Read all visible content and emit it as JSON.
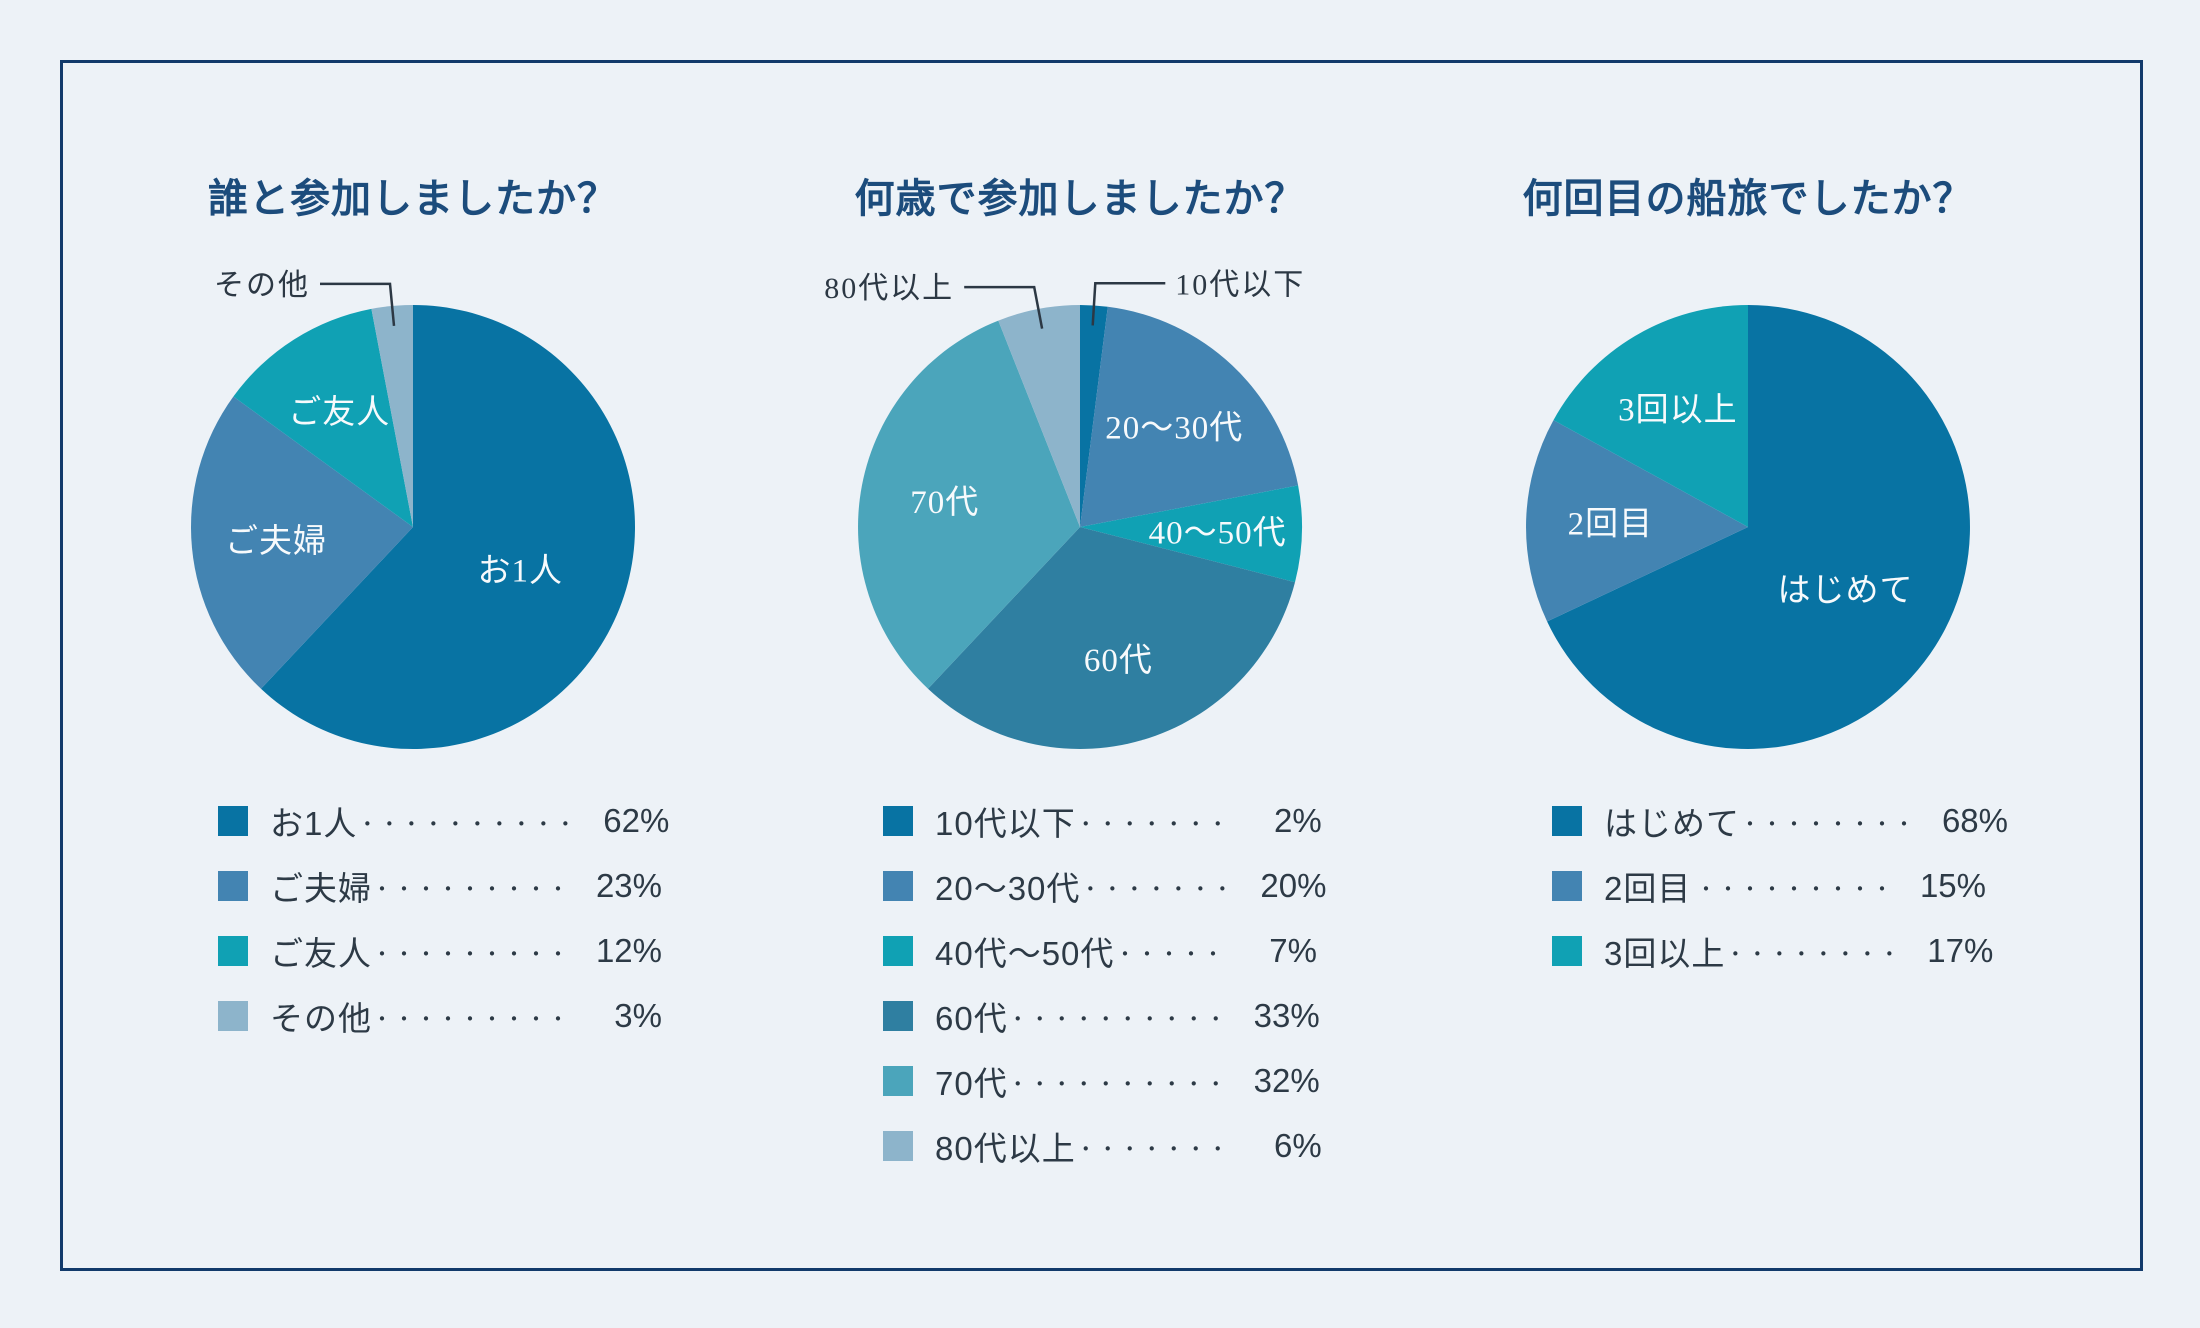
{
  "frame": {
    "background": "#edf2f7",
    "border_color": "#123a6b",
    "title_color": "#1c4c7c",
    "text_color": "#2d3a46"
  },
  "chart_data": [
    {
      "type": "pie",
      "title": "誰と参加しましたか？",
      "legend_position": "bottom",
      "slices": [
        {
          "label": "お1人",
          "value": 62,
          "color": "#0873a3",
          "pie_label": "お1人",
          "label_placement": "inside"
        },
        {
          "label": "ご夫婦",
          "value": 23,
          "color": "#4384b2",
          "pie_label": "ご夫婦",
          "label_placement": "inside"
        },
        {
          "label": "ご友人",
          "value": 12,
          "color": "#10a1b4",
          "pie_label": "ご友人",
          "label_placement": "inside"
        },
        {
          "label": "その他",
          "value": 3,
          "color": "#8db4cb",
          "pie_label": "その他",
          "label_placement": "callout-left"
        }
      ],
      "legend": [
        {
          "label": "お1人",
          "dots": "・・・・・・・・・・",
          "value": "62%",
          "color": "#0873a3"
        },
        {
          "label": "ご夫婦",
          "dots": "・・・・・・・・・",
          "value": "23%",
          "color": "#4384b2"
        },
        {
          "label": "ご友人",
          "dots": "・・・・・・・・・",
          "value": "12%",
          "color": "#10a1b4"
        },
        {
          "label": "その他",
          "dots": "・・・・・・・・・",
          "value": "3%",
          "color": "#8db4cb"
        }
      ]
    },
    {
      "type": "pie",
      "title": "何歳で参加しましたか？",
      "legend_position": "bottom",
      "slices": [
        {
          "label": "10代以下",
          "value": 2,
          "color": "#0873a3",
          "pie_label": "10代以下",
          "label_placement": "callout-right"
        },
        {
          "label": "20〜30代",
          "value": 20,
          "color": "#4384b2",
          "pie_label": "20〜30代",
          "label_placement": "inside"
        },
        {
          "label": "40代〜50代",
          "value": 7,
          "color": "#10a1b4",
          "pie_label": "40〜50代",
          "label_placement": "inside"
        },
        {
          "label": "60代",
          "value": 33,
          "color": "#2f7fa1",
          "pie_label": "60代",
          "label_placement": "inside"
        },
        {
          "label": "70代",
          "value": 32,
          "color": "#4ba5bb",
          "pie_label": "70代",
          "label_placement": "inside"
        },
        {
          "label": "80代以上",
          "value": 6,
          "color": "#8db4cb",
          "pie_label": "80代以上",
          "label_placement": "callout-left"
        }
      ],
      "legend": [
        {
          "label": "10代以下",
          "dots": "・・・・・・・",
          "value": "2%",
          "color": "#0873a3"
        },
        {
          "label": "20〜30代",
          "dots": "・・・・・・・",
          "value": "20%",
          "color": "#4384b2"
        },
        {
          "label": "40代〜50代",
          "dots": "・・・・・",
          "value": "7%",
          "color": "#10a1b4"
        },
        {
          "label": "60代",
          "dots": "・・・・・・・・・・",
          "value": "33%",
          "color": "#2f7fa1"
        },
        {
          "label": "70代",
          "dots": "・・・・・・・・・・",
          "value": "32%",
          "color": "#4ba5bb"
        },
        {
          "label": "80代以上",
          "dots": "・・・・・・・",
          "value": "6%",
          "color": "#8db4cb"
        }
      ]
    },
    {
      "type": "pie",
      "title": "何回目の船旅でしたか？",
      "legend_position": "bottom",
      "slices": [
        {
          "label": "はじめて",
          "value": 68,
          "color": "#0873a3",
          "pie_label": "はじめて",
          "label_placement": "inside"
        },
        {
          "label": "2回目",
          "value": 15,
          "color": "#4384b2",
          "pie_label": "2回目",
          "label_placement": "inside"
        },
        {
          "label": "3回以上",
          "value": 17,
          "color": "#10a1b4",
          "pie_label": "3回以上",
          "label_placement": "inside"
        }
      ],
      "legend": [
        {
          "label": "はじめて",
          "dots": "・・・・・・・・",
          "value": "68%",
          "color": "#0873a3"
        },
        {
          "label": "2回目",
          "dots": "・・・・・・・・・",
          "value": "15%",
          "color": "#4384b2"
        },
        {
          "label": "3回以上",
          "dots": "・・・・・・・・",
          "value": "17%",
          "color": "#10a1b4"
        }
      ]
    }
  ]
}
